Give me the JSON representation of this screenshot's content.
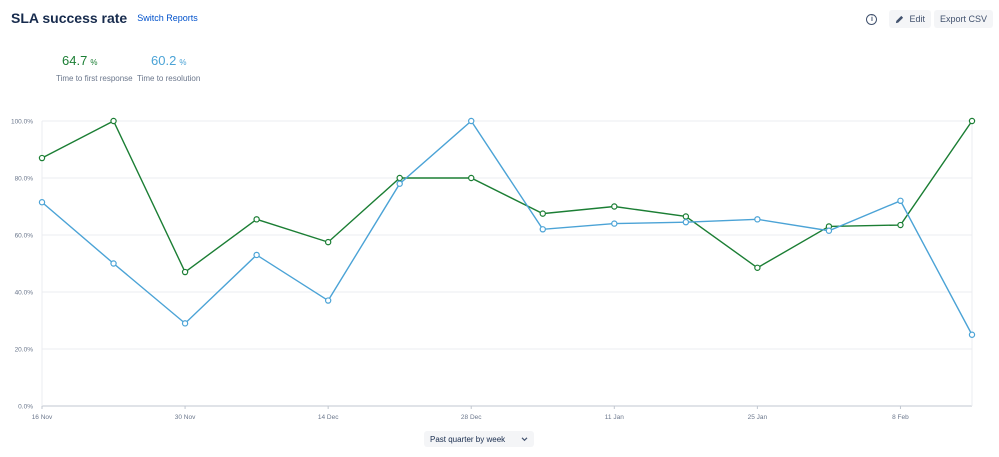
{
  "header": {
    "title": "SLA success rate",
    "switch_label": "Switch Reports",
    "edit_label": "Edit",
    "export_label": "Export CSV"
  },
  "metrics": [
    {
      "value": "64.7",
      "unit": "%",
      "label": "Time to first response",
      "color": "#1b7e34"
    },
    {
      "value": "60.2",
      "unit": "%",
      "label": "Time to resolution",
      "color": "#4ba3d6"
    }
  ],
  "period_select": {
    "value": "Past quarter by week"
  },
  "chart_data": {
    "type": "line",
    "title": "",
    "xlabel": "",
    "ylabel": "",
    "ylim": [
      0,
      100
    ],
    "yticks": [
      "0.0%",
      "20.0%",
      "40.0%",
      "60.0%",
      "80.0%",
      "100.0%"
    ],
    "x_tick_labels": [
      "16 Nov",
      "30 Nov",
      "14 Dec",
      "28 Dec",
      "11 Jan",
      "25 Jan",
      "8 Feb"
    ],
    "x": [
      "16 Nov",
      "23 Nov",
      "30 Nov",
      "7 Dec",
      "14 Dec",
      "21 Dec",
      "28 Dec",
      "4 Jan",
      "11 Jan",
      "18 Jan",
      "25 Jan",
      "1 Feb",
      "8 Feb",
      "15 Feb"
    ],
    "grid": true,
    "series": [
      {
        "name": "Time to first response",
        "color": "#1b7e34",
        "values": [
          87,
          100,
          47,
          65.5,
          57.5,
          80,
          80,
          67.5,
          70,
          66.5,
          48.5,
          63,
          63.5,
          100
        ]
      },
      {
        "name": "Time to resolution",
        "color": "#4ba3d6",
        "values": [
          71.5,
          50,
          29,
          53,
          37,
          78,
          100,
          62,
          64,
          64.5,
          65.5,
          61.5,
          72,
          25
        ]
      }
    ]
  }
}
